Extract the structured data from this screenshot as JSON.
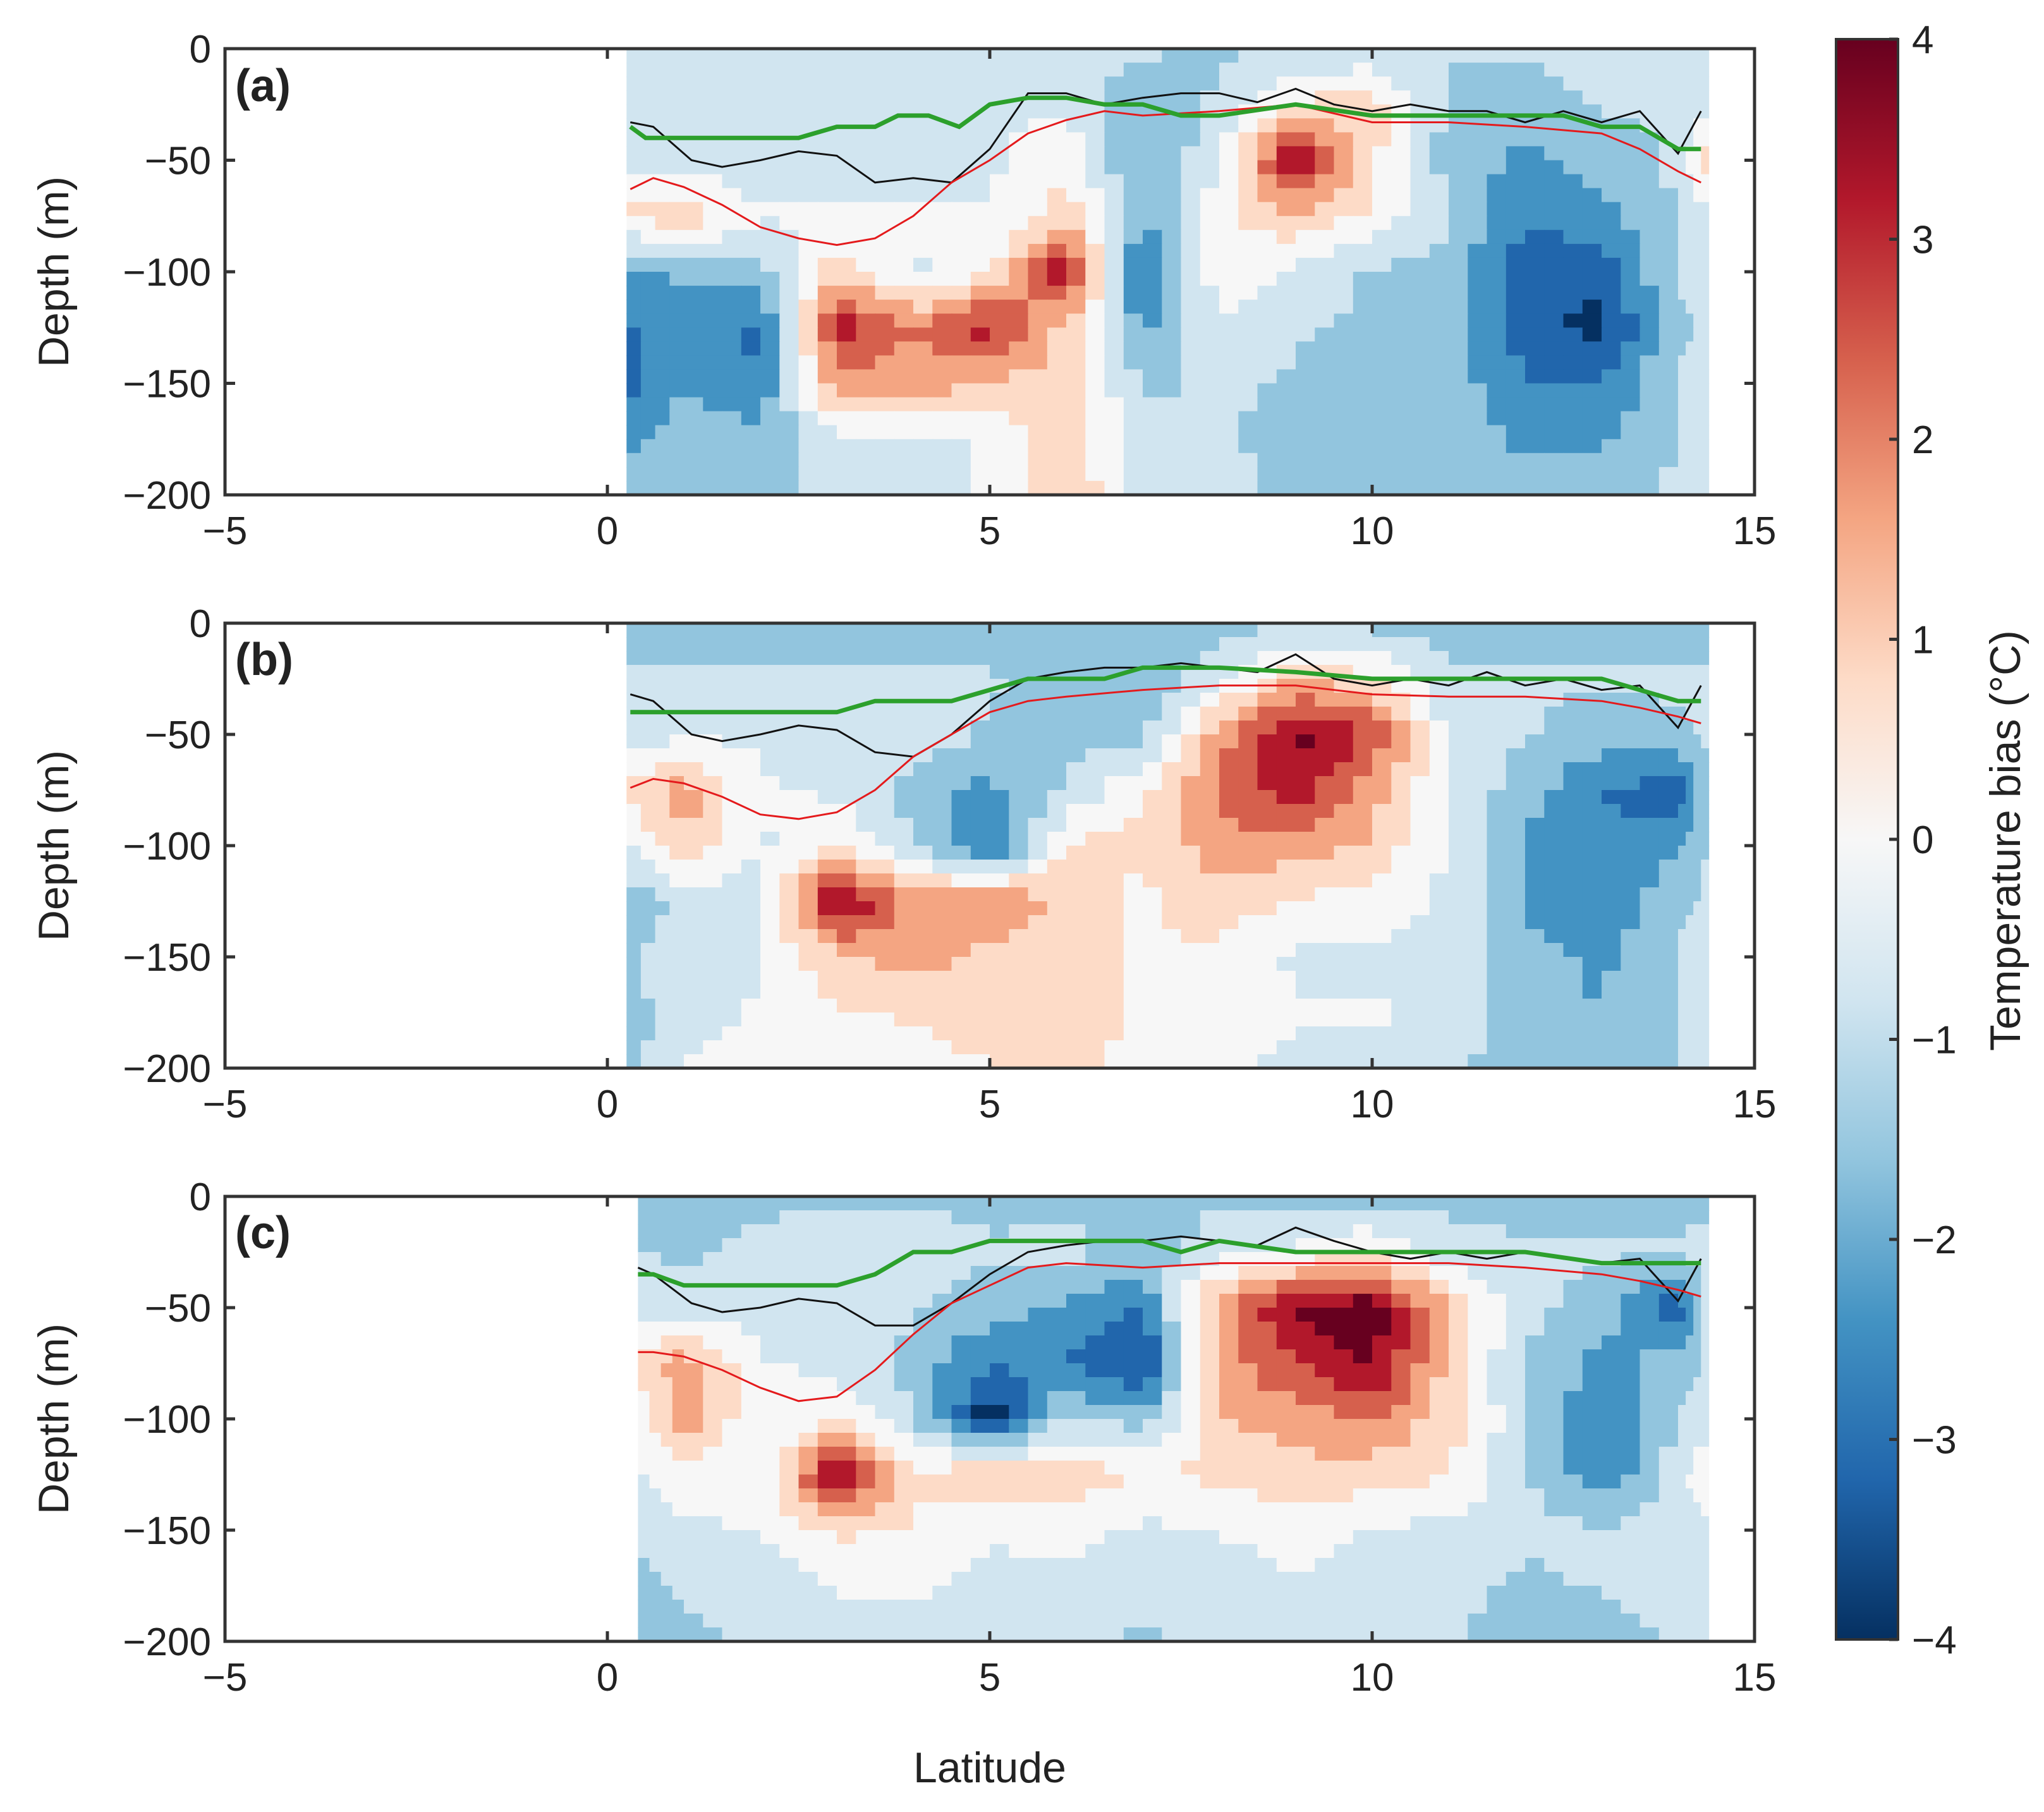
{
  "chart_data": {
    "type": "heatmap",
    "figure": "Temperature bias depth-latitude sections, three panels",
    "shared_axes": {
      "xlabel": "Latitude",
      "ylabel": "Depth (m)",
      "xlim": [
        -5,
        15
      ],
      "ylim": [
        -200,
        0
      ],
      "xticks": [
        -5,
        0,
        5,
        10,
        15
      ],
      "yticks": [
        0,
        -50,
        -100,
        -150,
        -200
      ],
      "grid": false
    },
    "colorbar": {
      "label": "Temperature bias (°C)",
      "range": [
        -4,
        4
      ],
      "ticks": [
        4,
        3,
        2,
        1,
        0,
        -1,
        -2,
        -3,
        -4
      ],
      "colormap": "diverging blue-white-red",
      "stops": [
        "#053061",
        "#2166ac",
        "#4393c3",
        "#92c5de",
        "#d1e5f0",
        "#f7f7f7",
        "#fddbc7",
        "#f4a582",
        "#d6604d",
        "#b2182b",
        "#67001f"
      ]
    },
    "line_colors": {
      "black_line": "#111111",
      "red_line": "#e41a1c",
      "green_line": "#2ca02c"
    },
    "x_grid": [
      0.3,
      1,
      2,
      3,
      4,
      5,
      6,
      7,
      8,
      9,
      10,
      11,
      12,
      13,
      14,
      14.4
    ],
    "depth_grid": [
      0,
      -25,
      -50,
      -75,
      -100,
      -125,
      -150,
      -175,
      -200
    ],
    "panels": [
      {
        "label": "(a)",
        "data_start_lat": 0.25,
        "bias_field": [
          [
            -1.0,
            -1.0,
            -1.0,
            -1.0,
            -1.0,
            -1.0,
            -1.0,
            -1.0,
            -1.2,
            -1.0,
            -1.0,
            -1.0,
            -1.0,
            -1.0,
            -1.0,
            -1.0
          ],
          [
            -0.8,
            -0.8,
            -0.8,
            -0.8,
            -0.8,
            -0.6,
            -0.5,
            -1.6,
            -1.0,
            0.5,
            0.8,
            -1.3,
            -1.3,
            -1.0,
            -1.0,
            -0.5
          ],
          [
            -0.8,
            -0.8,
            -0.8,
            -0.8,
            -0.8,
            -0.5,
            0.2,
            -2.0,
            -0.5,
            3.5,
            0.5,
            -1.4,
            -2.0,
            -1.5,
            -1.0,
            1.0
          ],
          [
            0.5,
            0.8,
            -0.3,
            -0.3,
            -0.3,
            -0.3,
            0.8,
            -1.8,
            0.2,
            1.0,
            0.2,
            -1.0,
            -2.5,
            -2.0,
            -1.0,
            -0.5
          ],
          [
            -2.0,
            -1.6,
            -1.4,
            0.8,
            -0.5,
            0.3,
            3.2,
            -3.0,
            0.2,
            -0.5,
            -1.2,
            -1.4,
            -3.0,
            -3.0,
            -1.0,
            -1.0
          ],
          [
            -2.6,
            -2.3,
            -2.7,
            3.0,
            1.8,
            3.0,
            0.8,
            -2.0,
            -0.5,
            -1.0,
            -1.2,
            -1.6,
            -3.0,
            -3.5,
            -1.2,
            -1.0
          ],
          [
            -2.8,
            -1.8,
            -2.5,
            1.5,
            1.5,
            1.0,
            0.8,
            -1.2,
            -1.0,
            -1.2,
            -1.3,
            -1.4,
            -2.5,
            -2.5,
            -1.0,
            -1.0
          ],
          [
            -2.0,
            -1.4,
            -1.6,
            -0.5,
            -0.5,
            -0.3,
            0.8,
            -0.8,
            -1.0,
            -1.3,
            -1.3,
            -1.3,
            -2.0,
            -2.0,
            -1.0,
            -1.0
          ],
          [
            -1.5,
            -1.3,
            -1.3,
            -0.8,
            -0.8,
            -0.3,
            1.2,
            -0.8,
            -0.8,
            -1.3,
            -1.3,
            -1.3,
            -1.5,
            -1.3,
            -1.0,
            -1.0
          ]
        ],
        "black_line": {
          "lat": [
            0.3,
            0.6,
            1.1,
            1.5,
            2.0,
            2.5,
            3.0,
            3.5,
            4.0,
            4.5,
            5.0,
            5.5,
            6.0,
            6.5,
            7.0,
            7.5,
            8.0,
            8.5,
            9.0,
            9.5,
            10.0,
            10.5,
            11.0,
            11.5,
            12.0,
            12.5,
            13.0,
            13.5,
            14.0,
            14.3
          ],
          "depth": [
            -33,
            -35,
            -50,
            -53,
            -50,
            -46,
            -48,
            -60,
            -58,
            -60,
            -45,
            -20,
            -20,
            -25,
            -22,
            -20,
            -20,
            -24,
            -18,
            -25,
            -28,
            -25,
            -28,
            -28,
            -33,
            -28,
            -33,
            -28,
            -47,
            -28
          ]
        },
        "red_line": {
          "lat": [
            0.3,
            0.6,
            1.0,
            1.5,
            2.0,
            2.5,
            3.0,
            3.5,
            4.0,
            4.5,
            5.0,
            5.5,
            6.0,
            6.5,
            7.0,
            8.0,
            9.0,
            10.0,
            11.0,
            12.0,
            13.0,
            13.5,
            14.0,
            14.3
          ],
          "depth": [
            -63,
            -58,
            -62,
            -70,
            -80,
            -85,
            -88,
            -85,
            -75,
            -60,
            -50,
            -38,
            -32,
            -28,
            -30,
            -28,
            -25,
            -33,
            -33,
            -35,
            -38,
            -45,
            -55,
            -60
          ]
        },
        "green_line": {
          "lat": [
            0.3,
            0.5,
            1.0,
            2.0,
            2.5,
            3.0,
            3.5,
            3.8,
            4.2,
            4.6,
            5.0,
            5.5,
            6.0,
            6.5,
            7.0,
            7.5,
            8.0,
            9.0,
            10.0,
            11.0,
            12.0,
            12.5,
            13.0,
            13.5,
            14.0,
            14.3
          ],
          "depth": [
            -35,
            -40,
            -40,
            -40,
            -40,
            -35,
            -35,
            -30,
            -30,
            -35,
            -25,
            -22,
            -22,
            -25,
            -25,
            -30,
            -30,
            -25,
            -30,
            -30,
            -30,
            -30,
            -35,
            -35,
            -45,
            -45
          ]
        }
      },
      {
        "label": "(b)",
        "data_start_lat": 0.25,
        "bias_field": [
          [
            -1.3,
            -1.3,
            -1.3,
            -1.3,
            -1.3,
            -1.3,
            -1.3,
            -1.8,
            -1.3,
            -1.3,
            -1.3,
            -1.3,
            -1.3,
            -1.3,
            -1.3,
            -1.3
          ],
          [
            -1.0,
            -1.0,
            -1.0,
            -1.0,
            -1.0,
            -1.0,
            -1.5,
            -1.8,
            -0.5,
            1.0,
            0.5,
            -1.0,
            -1.0,
            -1.0,
            -1.0,
            -1.0
          ],
          [
            -0.8,
            -0.5,
            -0.5,
            -0.5,
            -0.5,
            -1.2,
            -1.3,
            -1.3,
            1.5,
            3.5,
            2.5,
            -0.5,
            -1.0,
            -1.5,
            -1.2,
            -1.0
          ],
          [
            0.5,
            1.5,
            -0.3,
            -0.5,
            -1.5,
            -2.0,
            -1.0,
            0.3,
            2.0,
            3.0,
            1.5,
            -0.5,
            -1.5,
            -2.5,
            -3.0,
            -1.0
          ],
          [
            -0.5,
            1.0,
            -0.5,
            0.5,
            -1.0,
            -2.8,
            0.5,
            0.5,
            1.5,
            1.5,
            1.0,
            -0.5,
            -2.0,
            -2.5,
            -2.0,
            -1.0
          ],
          [
            -1.5,
            -1.0,
            -0.5,
            3.5,
            1.5,
            2.0,
            0.8,
            0.2,
            0.8,
            0.3,
            0.0,
            -0.5,
            -2.0,
            -2.5,
            -1.2,
            -1.0
          ],
          [
            -1.3,
            -0.5,
            -0.5,
            1.0,
            1.5,
            0.8,
            0.8,
            0.3,
            0.2,
            -0.5,
            -0.5,
            -0.5,
            -1.5,
            -2.0,
            -1.0,
            -1.0
          ],
          [
            -1.5,
            -0.5,
            -0.3,
            0.3,
            0.5,
            0.8,
            0.8,
            0.3,
            0.0,
            -0.3,
            -0.3,
            -0.5,
            -1.5,
            -1.8,
            -1.0,
            -1.0
          ],
          [
            -1.5,
            -0.3,
            -0.3,
            -0.3,
            0.0,
            0.3,
            0.8,
            -0.2,
            -0.3,
            -0.5,
            -0.5,
            -1.0,
            -1.5,
            -1.8,
            -1.0,
            -1.0
          ]
        ],
        "black_line": {
          "lat": [
            0.3,
            0.6,
            1.1,
            1.5,
            2.0,
            2.5,
            3.0,
            3.5,
            4.0,
            4.5,
            5.0,
            5.5,
            6.0,
            6.5,
            7.0,
            7.5,
            8.0,
            8.5,
            9.0,
            9.5,
            10.0,
            10.5,
            11.0,
            11.5,
            12.0,
            12.5,
            13.0,
            13.5,
            14.0,
            14.3
          ],
          "depth": [
            -32,
            -35,
            -50,
            -53,
            -50,
            -46,
            -48,
            -58,
            -60,
            -50,
            -35,
            -25,
            -22,
            -20,
            -20,
            -18,
            -20,
            -22,
            -14,
            -25,
            -28,
            -25,
            -28,
            -22,
            -28,
            -25,
            -30,
            -28,
            -47,
            -28
          ]
        },
        "red_line": {
          "lat": [
            0.3,
            0.6,
            1.0,
            1.5,
            2.0,
            2.5,
            3.0,
            3.5,
            4.0,
            4.5,
            5.0,
            5.5,
            6.0,
            7.0,
            8.0,
            9.0,
            10.0,
            11.0,
            12.0,
            13.0,
            13.5,
            14.0,
            14.3
          ],
          "depth": [
            -74,
            -70,
            -72,
            -78,
            -86,
            -88,
            -85,
            -75,
            -60,
            -50,
            -40,
            -35,
            -33,
            -30,
            -28,
            -28,
            -32,
            -33,
            -33,
            -35,
            -38,
            -42,
            -45
          ]
        },
        "green_line": {
          "lat": [
            0.3,
            1.0,
            2.0,
            3.0,
            3.5,
            4.0,
            4.5,
            5.0,
            5.5,
            6.0,
            6.5,
            7.0,
            7.5,
            8.0,
            9.0,
            10.0,
            11.0,
            12.0,
            13.0,
            13.5,
            14.0,
            14.3
          ],
          "depth": [
            -40,
            -40,
            -40,
            -40,
            -35,
            -35,
            -35,
            -30,
            -25,
            -25,
            -25,
            -20,
            -20,
            -20,
            -22,
            -25,
            -25,
            -25,
            -25,
            -30,
            -35,
            -35
          ]
        }
      },
      {
        "label": "(c)",
        "data_start_lat": 0.4,
        "bias_field": [
          [
            -1.5,
            -1.8,
            -1.3,
            -1.3,
            -1.3,
            -1.3,
            -1.3,
            -1.8,
            -1.3,
            -1.3,
            -1.3,
            -1.3,
            -1.3,
            -1.3,
            -1.3,
            -1.3
          ],
          [
            -1.0,
            -1.3,
            -0.8,
            -0.5,
            -0.5,
            -1.0,
            -0.8,
            -1.5,
            -0.5,
            -0.3,
            0.3,
            -0.8,
            -1.0,
            -1.0,
            -1.0,
            -0.8
          ],
          [
            -0.8,
            -0.8,
            -0.8,
            -0.3,
            -1.0,
            -1.5,
            -2.0,
            -2.5,
            1.5,
            3.5,
            3.8,
            1.0,
            -0.8,
            -1.5,
            -3.0,
            -0.8
          ],
          [
            0.5,
            1.5,
            -0.3,
            -0.5,
            -1.5,
            -2.5,
            -2.5,
            -3.5,
            1.5,
            2.5,
            3.5,
            0.8,
            -1.2,
            -2.0,
            -1.5,
            -1.0
          ],
          [
            0.0,
            1.5,
            -0.3,
            0.2,
            -1.0,
            -3.8,
            -1.0,
            -1.5,
            1.0,
            1.5,
            1.8,
            0.8,
            -1.0,
            -2.5,
            -1.0,
            -0.8
          ],
          [
            -0.5,
            0.2,
            -0.3,
            3.5,
            0.5,
            1.0,
            0.8,
            0.3,
            0.5,
            0.8,
            0.8,
            0.3,
            -1.0,
            -2.5,
            -0.8,
            0.5
          ],
          [
            -1.0,
            -0.5,
            -0.3,
            0.5,
            0.3,
            -0.3,
            -0.2,
            -0.5,
            -0.3,
            0.0,
            -0.5,
            -0.5,
            -0.8,
            -1.0,
            -0.8,
            -0.5
          ],
          [
            -1.3,
            -1.0,
            -0.8,
            -0.3,
            -0.3,
            -0.5,
            -0.5,
            -0.8,
            -0.8,
            -0.5,
            -0.5,
            -0.8,
            -1.3,
            -1.0,
            -0.8,
            -0.8
          ],
          [
            -1.3,
            -1.3,
            -1.0,
            -0.5,
            -0.5,
            -0.5,
            -1.0,
            -1.2,
            -1.0,
            -0.8,
            -0.8,
            -1.0,
            -1.5,
            -1.5,
            -1.0,
            -1.0
          ]
        ],
        "black_line": {
          "lat": [
            0.4,
            0.6,
            1.1,
            1.5,
            2.0,
            2.5,
            3.0,
            3.5,
            4.0,
            4.5,
            5.0,
            5.5,
            6.0,
            6.5,
            7.0,
            7.5,
            8.0,
            8.5,
            9.0,
            9.5,
            10.0,
            10.5,
            11.0,
            11.5,
            12.0,
            12.5,
            13.0,
            13.5,
            14.0,
            14.3
          ],
          "depth": [
            -32,
            -35,
            -48,
            -52,
            -50,
            -46,
            -48,
            -58,
            -58,
            -48,
            -35,
            -25,
            -22,
            -20,
            -20,
            -18,
            -20,
            -22,
            -14,
            -20,
            -25,
            -28,
            -25,
            -28,
            -25,
            -28,
            -30,
            -28,
            -47,
            -28
          ]
        },
        "red_line": {
          "lat": [
            0.4,
            0.6,
            1.0,
            1.5,
            2.0,
            2.5,
            3.0,
            3.5,
            4.0,
            4.5,
            5.0,
            5.5,
            6.0,
            7.0,
            8.0,
            9.0,
            10.0,
            11.0,
            12.0,
            13.0,
            13.5,
            14.0,
            14.3
          ],
          "depth": [
            -70,
            -70,
            -72,
            -78,
            -86,
            -92,
            -90,
            -78,
            -62,
            -48,
            -40,
            -32,
            -30,
            -32,
            -30,
            -30,
            -30,
            -30,
            -32,
            -35,
            -38,
            -42,
            -45
          ]
        },
        "green_line": {
          "lat": [
            0.4,
            0.6,
            1.0,
            2.0,
            3.0,
            3.5,
            4.0,
            4.5,
            5.0,
            5.5,
            6.0,
            7.0,
            7.5,
            8.0,
            9.0,
            10.0,
            11.0,
            12.0,
            13.0,
            13.5,
            14.0,
            14.3
          ],
          "depth": [
            -35,
            -35,
            -40,
            -40,
            -40,
            -35,
            -25,
            -25,
            -20,
            -20,
            -20,
            -20,
            -25,
            -20,
            -25,
            -25,
            -25,
            -25,
            -30,
            -30,
            -30,
            -30
          ]
        }
      }
    ]
  }
}
